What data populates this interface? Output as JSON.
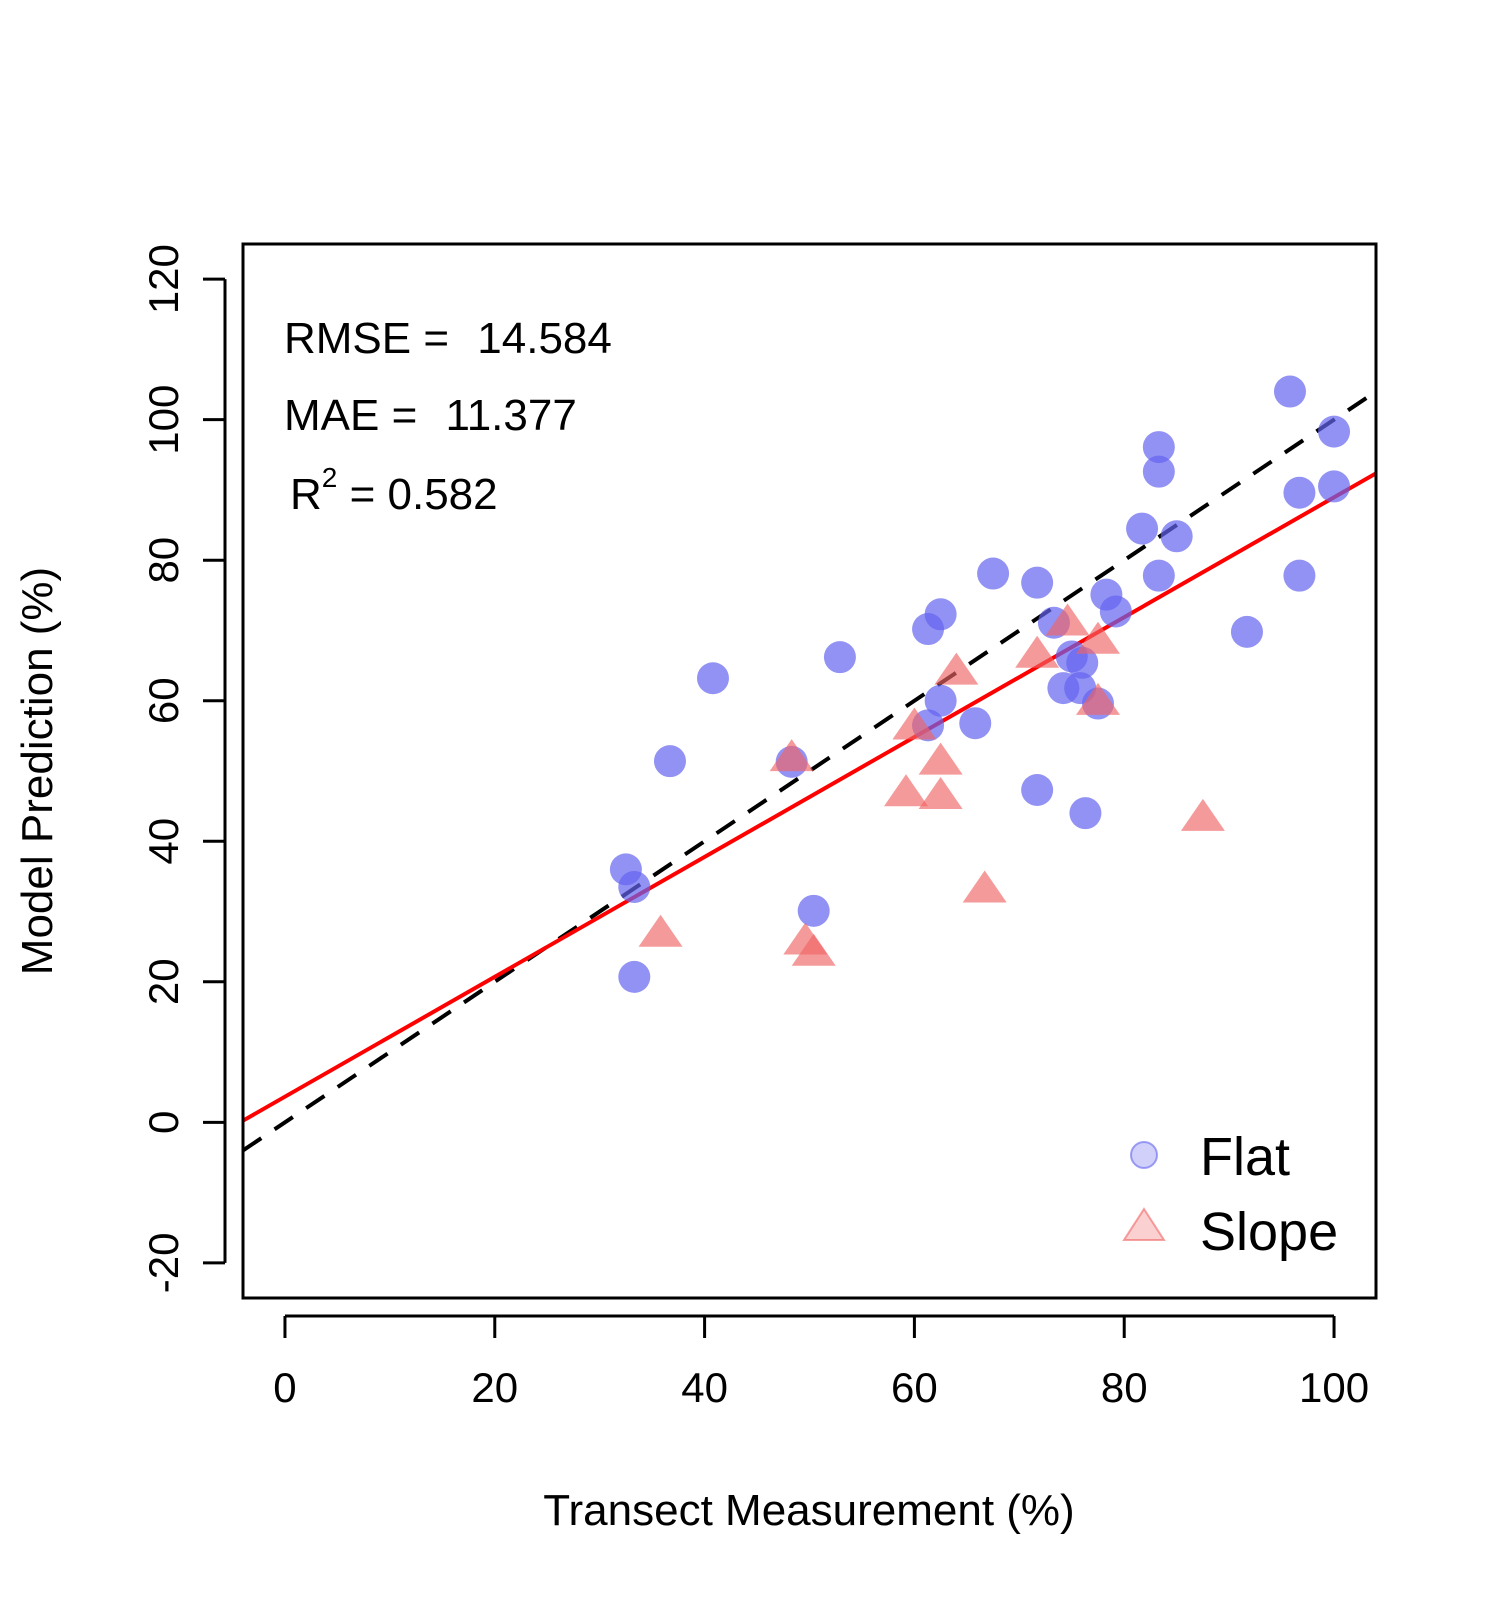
{
  "chart_data": {
    "type": "scatter",
    "title": "",
    "xlabel": "Transect Measurement (%)",
    "ylabel": "Model Prediction (%)",
    "xlim": [
      -4,
      104
    ],
    "ylim": [
      -25,
      125
    ],
    "xticks": [
      0,
      20,
      40,
      60,
      80,
      100
    ],
    "yticks": [
      -20,
      0,
      20,
      40,
      60,
      80,
      100,
      120
    ],
    "grid": false,
    "legend_position": "bottom-right",
    "stats": {
      "rmse_label": "RMSE = ",
      "rmse_value": "14.584",
      "mae_label": "MAE = ",
      "mae_value": "11.377",
      "r2_base": "R",
      "r2_sup": "2",
      "r2_rest": " = 0.582"
    },
    "series": [
      {
        "name": "Flat",
        "marker": "circle",
        "color": "#6464F0",
        "points": [
          [
            32.5,
            36
          ],
          [
            33.3,
            33.5
          ],
          [
            33.3,
            20.7
          ],
          [
            36.7,
            51.4
          ],
          [
            40.8,
            63.2
          ],
          [
            48.3,
            51.3
          ],
          [
            50.4,
            30.1
          ],
          [
            52.9,
            66.2
          ],
          [
            61.3,
            56.5
          ],
          [
            61.3,
            70.2
          ],
          [
            62.5,
            60
          ],
          [
            62.5,
            72.3
          ],
          [
            65.8,
            56.8
          ],
          [
            67.5,
            78.1
          ],
          [
            71.7,
            76.8
          ],
          [
            71.7,
            47.3
          ],
          [
            73.3,
            71.1
          ],
          [
            74.2,
            61.8
          ],
          [
            75,
            66.3
          ],
          [
            75.8,
            61.8
          ],
          [
            76,
            65.4
          ],
          [
            76.3,
            44
          ],
          [
            77.5,
            59.6
          ],
          [
            78.3,
            75.1
          ],
          [
            79.2,
            72.7
          ],
          [
            81.7,
            84.5
          ],
          [
            83.3,
            96.1
          ],
          [
            83.3,
            92.6
          ],
          [
            83.3,
            77.8
          ],
          [
            85,
            83.4
          ],
          [
            91.7,
            69.8
          ],
          [
            95.8,
            104
          ],
          [
            96.7,
            89.6
          ],
          [
            96.7,
            77.8
          ],
          [
            100,
            98.3
          ],
          [
            100,
            90.5
          ]
        ]
      },
      {
        "name": "Slope",
        "marker": "triangle",
        "color": "#F06464",
        "points": [
          [
            35.8,
            26.9
          ],
          [
            48.3,
            51.9
          ],
          [
            49.6,
            25.8
          ],
          [
            50.4,
            24.2
          ],
          [
            59.2,
            46.9
          ],
          [
            60,
            56.4
          ],
          [
            62.5,
            51.4
          ],
          [
            62.5,
            46.5
          ],
          [
            64,
            64.2
          ],
          [
            66.7,
            33.2
          ],
          [
            71.7,
            66.6
          ],
          [
            74.6,
            71.2
          ],
          [
            77.5,
            68.6
          ],
          [
            77.5,
            59.9
          ],
          [
            87.5,
            43.4
          ]
        ]
      }
    ],
    "lines": [
      {
        "name": "1:1 line",
        "style": "dashed",
        "color": "#000000",
        "intercept": 0,
        "slope": 1
      },
      {
        "name": "regression fit",
        "style": "solid",
        "color": "#FF0000",
        "intercept": 3.65,
        "slope": 0.853
      }
    ]
  }
}
